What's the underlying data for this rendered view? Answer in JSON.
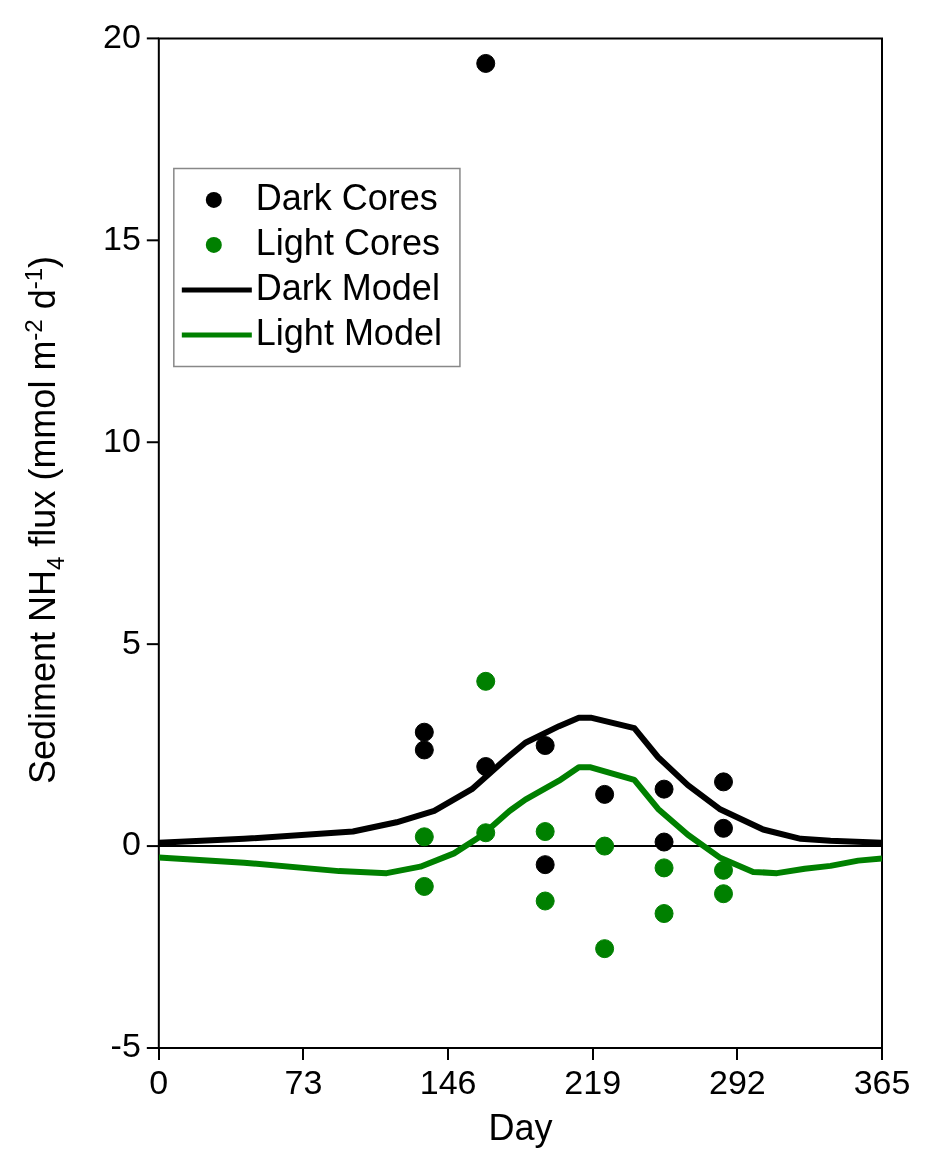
{
  "chart_data": {
    "type": "scatter",
    "xlabel": "Day",
    "ylabel": "Sediment NH$_{4}$ flux (mmol m$^{-2}$ d$^{-1}$)",
    "xlim": [
      0,
      365
    ],
    "xticks": [
      0,
      73,
      146,
      219,
      292,
      365
    ],
    "ylim": [
      -5,
      20
    ],
    "yticks": [
      -5,
      0,
      5,
      10,
      15,
      20
    ],
    "grid": false,
    "legend": "top left",
    "marker": "circle",
    "ref_lines": [
      {
        "axis": "y",
        "value": 0,
        "color": "#000000"
      }
    ],
    "series": [
      {
        "name": "Dark Cores",
        "color": "#000000",
        "x": [
          134,
          134,
          165,
          165,
          195,
          195,
          225,
          255,
          255,
          285,
          285
        ],
        "values": [
          2.82,
          2.38,
          1.97,
          19.38,
          2.49,
          -0.46,
          1.28,
          1.41,
          0.1,
          1.59,
          0.44
        ]
      },
      {
        "name": "Light Cores",
        "color": "#008000",
        "x": [
          134,
          134,
          165,
          165,
          195,
          195,
          225,
          225,
          255,
          255,
          285,
          285
        ],
        "values": [
          0.23,
          -1.0,
          4.08,
          0.33,
          0.36,
          -1.36,
          0.0,
          -2.54,
          -0.54,
          -1.67,
          -0.6,
          -1.18
        ]
      },
      {
        "name": "Dark Model",
        "type": "line",
        "marker": "none",
        "color": "#000000",
        "x": [
          0,
          43,
          98,
          120,
          139,
          158,
          175,
          185,
          202,
          212,
          218,
          240,
          252,
          267,
          283,
          305,
          324,
          339,
          365
        ],
        "values": [
          0.08,
          0.18,
          0.36,
          0.59,
          0.87,
          1.41,
          2.15,
          2.56,
          2.97,
          3.18,
          3.18,
          2.92,
          2.2,
          1.51,
          0.92,
          0.41,
          0.18,
          0.13,
          0.08
        ]
      },
      {
        "name": "Light Model",
        "type": "line",
        "marker": "none",
        "color": "#008000",
        "x": [
          0,
          43,
          91,
          115,
          132,
          149,
          163,
          177,
          185,
          202,
          212,
          218,
          240,
          252,
          267,
          283,
          300,
          312,
          326,
          339,
          353,
          365
        ],
        "values": [
          -0.28,
          -0.41,
          -0.62,
          -0.67,
          -0.51,
          -0.18,
          0.26,
          0.87,
          1.15,
          1.62,
          1.95,
          1.95,
          1.64,
          0.92,
          0.28,
          -0.28,
          -0.64,
          -0.67,
          -0.56,
          -0.49,
          -0.36,
          -0.31
        ]
      }
    ]
  }
}
